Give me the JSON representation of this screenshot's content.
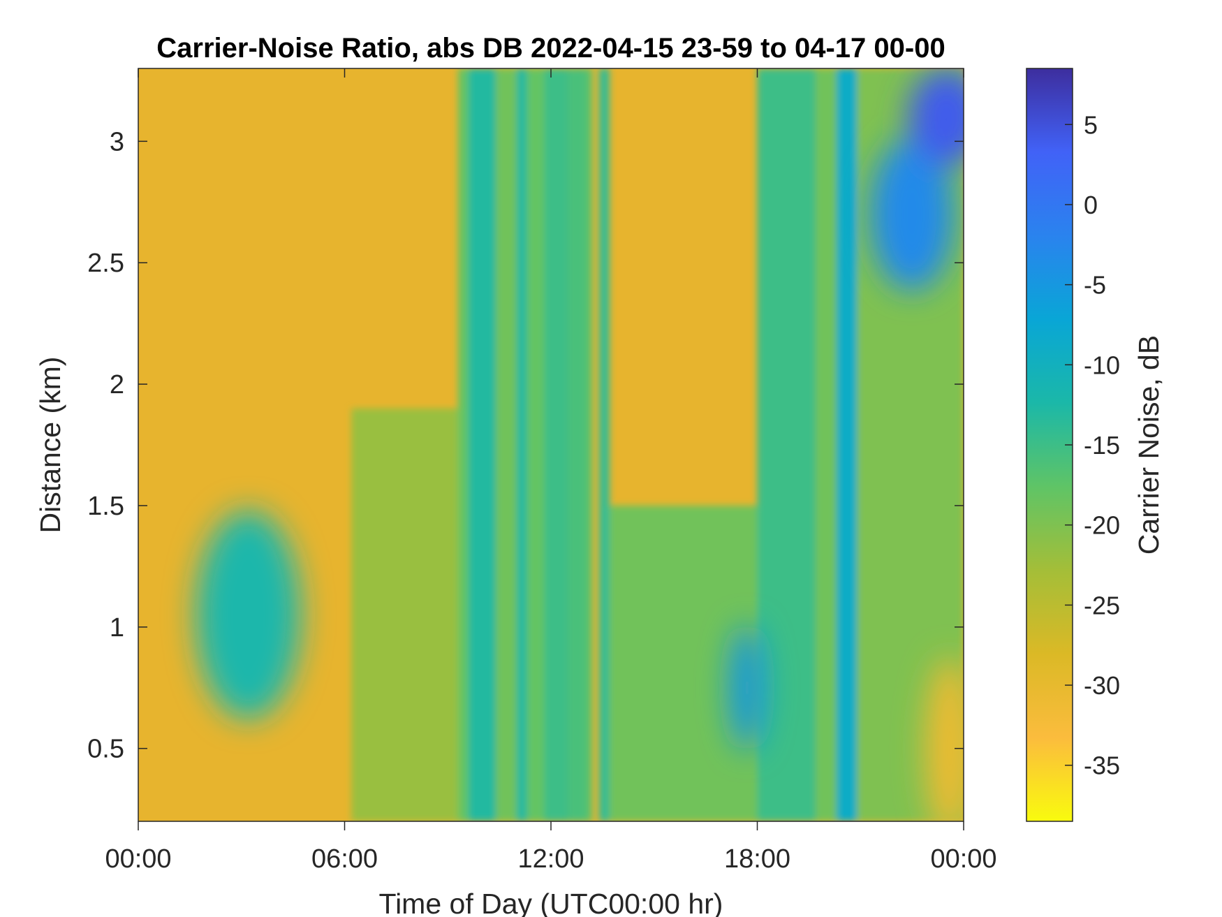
{
  "chart_data": {
    "type": "heatmap",
    "title": "Carrier-Noise Ratio, abs DB 2022-04-15 23-59 to 04-17 00-00",
    "xlabel": "Time of Day (UTC00:00 hr)",
    "ylabel": "Distance (km)",
    "colorbar_label": "Carrier Noise, dB",
    "x_range_hours": [
      0,
      24
    ],
    "y_range_km": [
      0.2,
      3.3
    ],
    "c_range_db": [
      -38.5,
      8.5
    ],
    "x_ticks": [
      {
        "hour": 0,
        "label": "00:00"
      },
      {
        "hour": 6,
        "label": "06:00"
      },
      {
        "hour": 12,
        "label": "12:00"
      },
      {
        "hour": 18,
        "label": "18:00"
      },
      {
        "hour": 24,
        "label": "00:00"
      }
    ],
    "y_ticks": [
      {
        "km": 0.5,
        "label": "0.5"
      },
      {
        "km": 1,
        "label": "1"
      },
      {
        "km": 1.5,
        "label": "1.5"
      },
      {
        "km": 2,
        "label": "2"
      },
      {
        "km": 2.5,
        "label": "2.5"
      },
      {
        "km": 3,
        "label": "3"
      }
    ],
    "c_ticks": [
      {
        "db": 5,
        "label": "5"
      },
      {
        "db": 0,
        "label": "0"
      },
      {
        "db": -5,
        "label": "-5"
      },
      {
        "db": -10,
        "label": "-10"
      },
      {
        "db": -15,
        "label": "-15"
      },
      {
        "db": -20,
        "label": "-20"
      },
      {
        "db": -25,
        "label": "-25"
      },
      {
        "db": -30,
        "label": "-30"
      },
      {
        "db": -35,
        "label": "-35"
      }
    ],
    "colormap": "parula-reversed",
    "colormap_stops": [
      "#f9fb0e",
      "#fbbc3d",
      "#dbb926",
      "#a4be38",
      "#5fc466",
      "#1bb8a8",
      "#09a6d6",
      "#2a83ee",
      "#4162f7",
      "#3d2e9e"
    ],
    "time_bands": [
      {
        "start_hour": 9.3,
        "end_hour": 9.6,
        "value_db": -18,
        "to_km": 3.3
      },
      {
        "start_hour": 9.6,
        "end_hour": 10.4,
        "value_db": -13,
        "to_km": 3.3
      },
      {
        "start_hour": 10.4,
        "end_hour": 11.0,
        "value_db": -19,
        "to_km": 3.3
      },
      {
        "start_hour": 11.0,
        "end_hour": 11.3,
        "value_db": -13,
        "to_km": 3.3
      },
      {
        "start_hour": 11.3,
        "end_hour": 11.8,
        "value_db": -18,
        "to_km": 3.3
      },
      {
        "start_hour": 11.8,
        "end_hour": 12.5,
        "value_db": -15,
        "to_km": 3.3
      },
      {
        "start_hour": 12.5,
        "end_hour": 13.0,
        "value_db": -16,
        "to_km": 3.3
      },
      {
        "start_hour": 13.0,
        "end_hour": 13.2,
        "value_db": -17,
        "to_km": 3.3
      },
      {
        "start_hour": 13.4,
        "end_hour": 13.7,
        "value_db": -14,
        "to_km": 3.3
      },
      {
        "start_hour": 6.2,
        "end_hour": 9.3,
        "value_db": -22,
        "to_km": 1.9
      },
      {
        "start_hour": 13.7,
        "end_hour": 18.0,
        "value_db": -19,
        "to_km": 1.5
      },
      {
        "start_hour": 18.0,
        "end_hour": 19.7,
        "value_db": -15,
        "to_km": 3.3
      },
      {
        "start_hour": 19.7,
        "end_hour": 20.3,
        "value_db": -19,
        "to_km": 3.3
      },
      {
        "start_hour": 20.3,
        "end_hour": 20.9,
        "value_db": -9,
        "to_km": 3.3
      },
      {
        "start_hour": 20.9,
        "end_hour": 24.0,
        "value_db": -20,
        "to_km": 3.3
      }
    ],
    "blobs": [
      {
        "hour": 3.2,
        "km": 1.05,
        "value_db": -12
      },
      {
        "hour": 17.7,
        "km": 0.75,
        "value_db": -5
      },
      {
        "hour": 22.5,
        "km": 2.7,
        "value_db": -3
      },
      {
        "hour": 23.5,
        "km": 3.1,
        "value_db": 4
      },
      {
        "hour": 23.6,
        "km": 0.5,
        "value_db": -31
      }
    ]
  }
}
